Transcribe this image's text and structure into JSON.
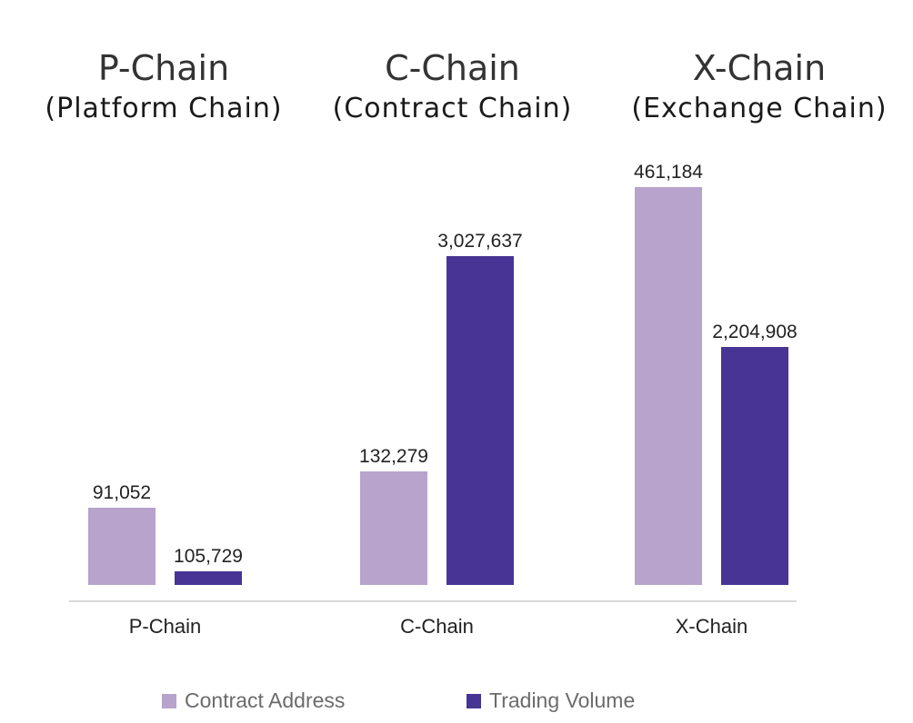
{
  "headers": [
    {
      "title": "P-Chain",
      "subtitle": "(Platform Chain)"
    },
    {
      "title": "C-Chain",
      "subtitle": "(Contract Chain)"
    },
    {
      "title": "X-Chain",
      "subtitle": "(Exchange Chain)"
    }
  ],
  "colors": {
    "contract_address": "#b7a3cb",
    "trading_volume": "#483494",
    "axis": "#d8d8d8"
  },
  "chart_data": {
    "type": "bar",
    "title": "",
    "xlabel": "",
    "ylabel": "",
    "categories": [
      "P-Chain",
      "C-Chain",
      "X-Chain"
    ],
    "series": [
      {
        "name": "Contract Address",
        "values": [
          91052,
          132279,
          461184
        ],
        "value_labels": [
          "91,052",
          "132,279",
          "461,184"
        ]
      },
      {
        "name": "Trading Volume",
        "values": [
          105729,
          3027637,
          2204908
        ],
        "value_labels": [
          "105,729",
          "3,027,637",
          "2,204,908"
        ]
      }
    ],
    "grid": false,
    "legend_position": "bottom"
  }
}
